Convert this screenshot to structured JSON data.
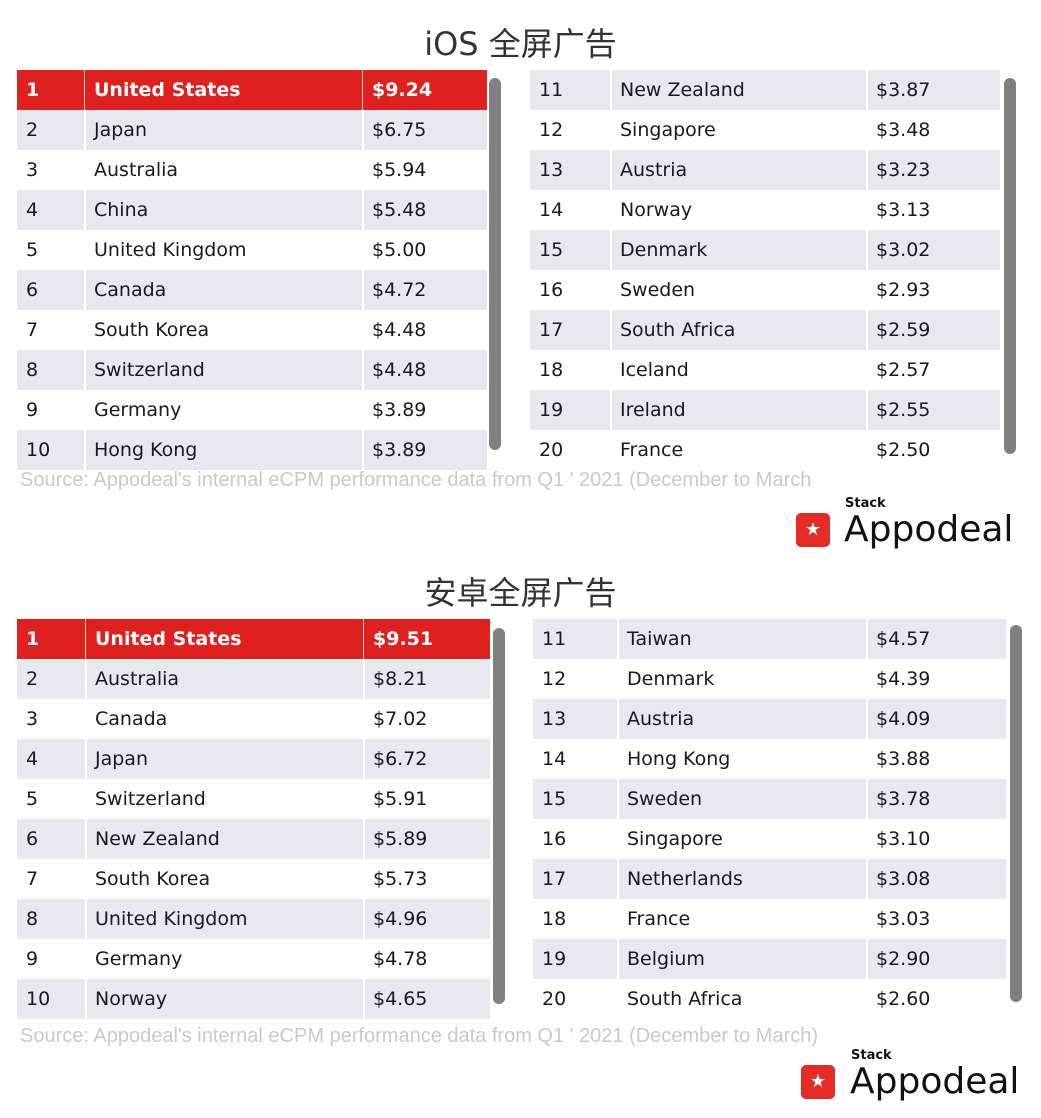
{
  "ios": {
    "title": "iOS 全屏广告",
    "left_rows": [
      {
        "rank": "1",
        "country": "United States",
        "value": "$9.24"
      },
      {
        "rank": "2",
        "country": "Japan",
        "value": "$6.75"
      },
      {
        "rank": "3",
        "country": "Australia",
        "value": "$5.94"
      },
      {
        "rank": "4",
        "country": "China",
        "value": "$5.48"
      },
      {
        "rank": "5",
        "country": "United Kingdom",
        "value": "$5.00"
      },
      {
        "rank": "6",
        "country": "Canada",
        "value": "$4.72"
      },
      {
        "rank": "7",
        "country": "South Korea",
        "value": "$4.48"
      },
      {
        "rank": "8",
        "country": "Switzerland",
        "value": "$4.48"
      },
      {
        "rank": "9",
        "country": "Germany",
        "value": "$3.89"
      },
      {
        "rank": "10",
        "country": "Hong Kong",
        "value": "$3.89"
      }
    ],
    "right_rows": [
      {
        "rank": "11",
        "country": "New Zealand",
        "value": "$3.87"
      },
      {
        "rank": "12",
        "country": "Singapore",
        "value": "$3.48"
      },
      {
        "rank": "13",
        "country": "Austria",
        "value": "$3.23"
      },
      {
        "rank": "14",
        "country": "Norway",
        "value": "$3.13"
      },
      {
        "rank": "15",
        "country": "Denmark",
        "value": "$3.02"
      },
      {
        "rank": "16",
        "country": "Sweden",
        "value": "$2.93"
      },
      {
        "rank": "17",
        "country": "South Africa",
        "value": "$2.59"
      },
      {
        "rank": "18",
        "country": "Iceland",
        "value": "$2.57"
      },
      {
        "rank": "19",
        "country": "Ireland",
        "value": "$2.55"
      },
      {
        "rank": "20",
        "country": "France",
        "value": "$2.50"
      }
    ],
    "source": "Source: Appodeal's internal eCPM performance data from Q1 ' 2021 (December to March"
  },
  "android": {
    "title": "安卓全屏广告",
    "left_rows": [
      {
        "rank": "1",
        "country": "United States",
        "value": "$9.51"
      },
      {
        "rank": "2",
        "country": "Australia",
        "value": "$8.21"
      },
      {
        "rank": "3",
        "country": "Canada",
        "value": "$7.02"
      },
      {
        "rank": "4",
        "country": "Japan",
        "value": "$6.72"
      },
      {
        "rank": "5",
        "country": "Switzerland",
        "value": "$5.91"
      },
      {
        "rank": "6",
        "country": "New Zealand",
        "value": "$5.89"
      },
      {
        "rank": "7",
        "country": "South Korea",
        "value": "$5.73"
      },
      {
        "rank": "8",
        "country": "United Kingdom",
        "value": "$4.96"
      },
      {
        "rank": "9",
        "country": "Germany",
        "value": "$4.78"
      },
      {
        "rank": "10",
        "country": "Norway",
        "value": "$4.65"
      }
    ],
    "right_rows": [
      {
        "rank": "11",
        "country": "Taiwan",
        "value": "$4.57"
      },
      {
        "rank": "12",
        "country": "Denmark",
        "value": "$4.39"
      },
      {
        "rank": "13",
        "country": "Austria",
        "value": "$4.09"
      },
      {
        "rank": "14",
        "country": "Hong Kong",
        "value": "$3.88"
      },
      {
        "rank": "15",
        "country": "Sweden",
        "value": "$3.78"
      },
      {
        "rank": "16",
        "country": "Singapore",
        "value": "$3.10"
      },
      {
        "rank": "17",
        "country": "Netherlands",
        "value": "$3.08"
      },
      {
        "rank": "18",
        "country": "France",
        "value": "$3.03"
      },
      {
        "rank": "19",
        "country": "Belgium",
        "value": "$2.90"
      },
      {
        "rank": "20",
        "country": "South Africa",
        "value": "$2.60"
      }
    ],
    "source": "Source: Appodeal's internal eCPM performance data from Q1 ' 2021 (December to March)"
  },
  "logo": {
    "stack_label": "Stack",
    "word": "Appodeal",
    "icon": "star-icon"
  },
  "colors": {
    "highlight": "#e0201f",
    "row_alt": "#e6e9ef",
    "scrollbar": "#808080",
    "source_text": "#c7c9cd",
    "brand": "#e62a26"
  }
}
